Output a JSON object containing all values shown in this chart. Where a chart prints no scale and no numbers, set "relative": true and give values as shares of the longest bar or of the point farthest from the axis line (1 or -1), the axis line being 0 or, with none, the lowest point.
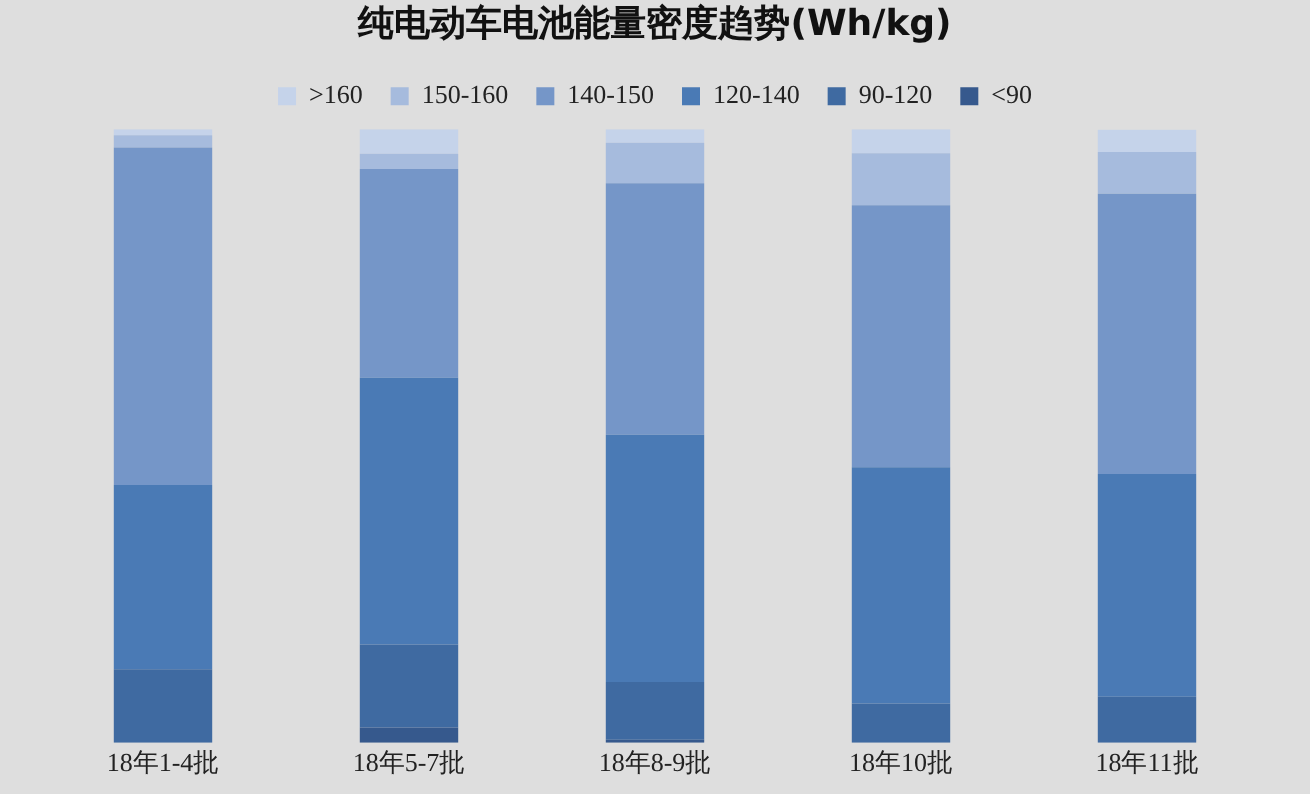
{
  "chart_data": {
    "type": "bar",
    "title": "纯电动车电池能量密度趋势(Wh/kg)",
    "stacked": true,
    "relative": true,
    "legend": "top",
    "grid": false,
    "categories": [
      "18年1-4批",
      "18年5-7批",
      "18年8-9批",
      "18年10批",
      "18年11批"
    ],
    "series": [
      {
        "name": "<90",
        "color": "#36598d",
        "values": [
          0,
          0.025,
          0.005,
          0,
          0
        ]
      },
      {
        "name": "90-120",
        "color": "#3f6aa1",
        "values": [
          0.12,
          0.135,
          0.094,
          0.064,
          0.075
        ]
      },
      {
        "name": "120-140",
        "color": "#4a7ab5",
        "values": [
          0.3,
          0.435,
          0.403,
          0.385,
          0.363
        ]
      },
      {
        "name": "140-150",
        "color": "#7596c8",
        "values": [
          0.55,
          0.34,
          0.41,
          0.427,
          0.457
        ]
      },
      {
        "name": "150-160",
        "color": "#a6bbdd",
        "values": [
          0.02,
          0.025,
          0.066,
          0.085,
          0.068
        ]
      },
      {
        "name": ">160",
        "color": "#c5d3ea",
        "values": [
          0.01,
          0.04,
          0.022,
          0.039,
          0.036
        ]
      }
    ]
  }
}
